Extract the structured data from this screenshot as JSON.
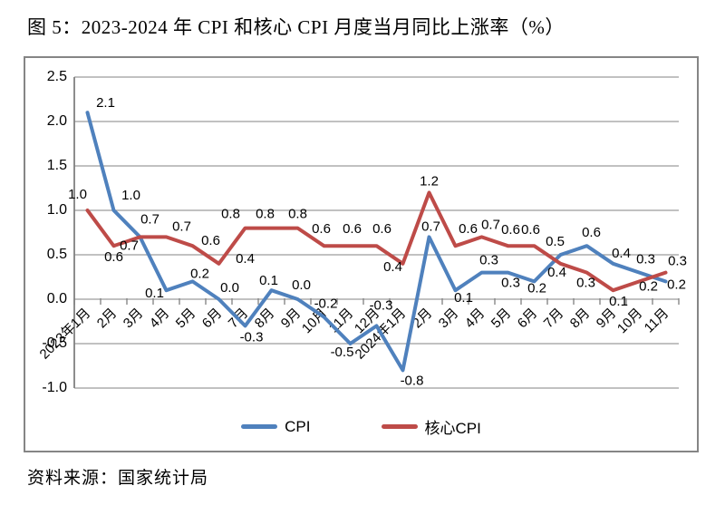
{
  "figure": {
    "title": "图 5：2023-2024 年 CPI 和核心 CPI 月度当月同比上涨率（%）",
    "source": "资料来源：国家统计局"
  },
  "chart_data": {
    "type": "line",
    "title": "图 5：2023-2024 年 CPI 和核心 CPI 月度当月同比上涨率（%）",
    "categories": [
      "2023年1月",
      "2月",
      "3月",
      "4月",
      "5月",
      "6月",
      "7月",
      "8月",
      "9月",
      "10月",
      "11月",
      "12月",
      "2024年1月",
      "2月",
      "3月",
      "4月",
      "5月",
      "6月",
      "7月",
      "8月",
      "9月",
      "10月",
      "11月"
    ],
    "series": [
      {
        "name": "CPI",
        "color": "#4F81BD",
        "values": [
          2.1,
          1.0,
          0.7,
          0.1,
          0.2,
          0.0,
          -0.3,
          0.1,
          0.0,
          -0.2,
          -0.5,
          -0.3,
          -0.8,
          0.7,
          0.1,
          0.3,
          0.3,
          0.2,
          0.5,
          0.6,
          0.4,
          0.3,
          0.2
        ]
      },
      {
        "name": "核心CPI",
        "color": "#BE4B48",
        "values": [
          1.0,
          0.6,
          0.7,
          0.7,
          0.6,
          0.4,
          0.8,
          0.8,
          0.8,
          0.6,
          0.6,
          0.6,
          0.4,
          1.2,
          0.6,
          0.7,
          0.6,
          0.6,
          0.4,
          0.3,
          0.1,
          0.2,
          0.3
        ]
      }
    ],
    "ylim": [
      -1.0,
      2.5
    ],
    "yticks": [
      2.5,
      2.0,
      1.5,
      1.0,
      0.5,
      0.0,
      -0.5,
      -1.0
    ],
    "grid": true,
    "grid_color": "#9C9C9C",
    "axis_color": "#808080",
    "label_color": "#000000",
    "legend_position": "bottom",
    "data_labels": true
  }
}
